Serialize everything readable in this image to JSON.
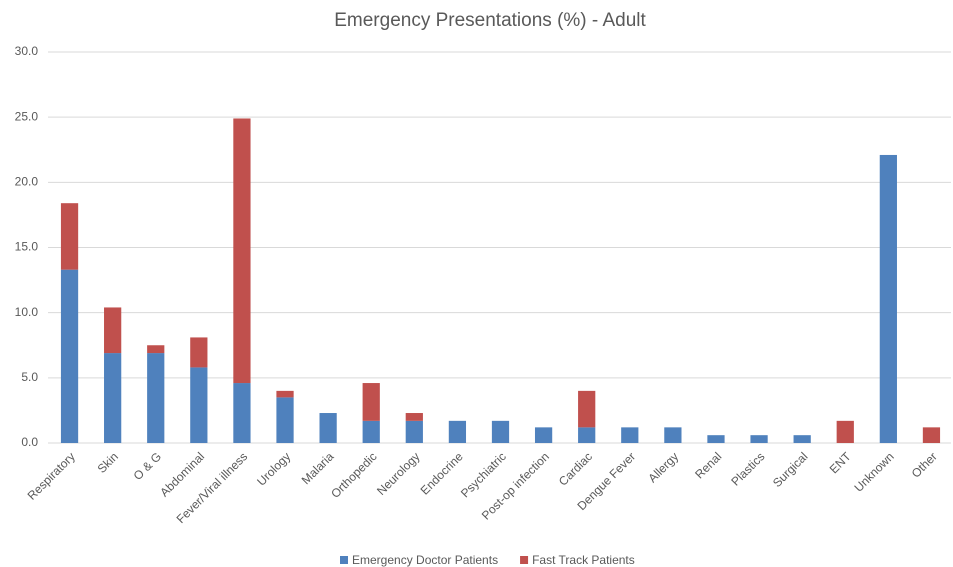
{
  "chart_data": {
    "type": "stacked_bar",
    "title": "Emergency Presentations (%) - Adult",
    "categories": [
      "Respiratory",
      "Skin",
      "O & G",
      "Abdominal",
      "Fever/Viral illness",
      "Urology",
      "Malaria",
      "Orthopedic",
      "Neurology",
      "Endocrine",
      "Psychiatric",
      "Post-op infection",
      "Cardiac",
      "Dengue Fever",
      "Allergy",
      "Renal",
      "Plastics",
      "Surgical",
      "ENT",
      "Unknown",
      "Other"
    ],
    "series": [
      {
        "name": "Emergency Doctor Patients",
        "color": "#4f81bd",
        "values": [
          13.3,
          6.9,
          6.9,
          5.8,
          4.6,
          3.5,
          2.3,
          1.7,
          1.7,
          1.7,
          1.7,
          1.2,
          1.2,
          1.2,
          1.2,
          0.6,
          0.6,
          0.6,
          0,
          22.1,
          0
        ]
      },
      {
        "name": "Fast Track Patients",
        "color": "#c0504d",
        "values": [
          5.1,
          3.5,
          0.6,
          2.3,
          20.3,
          0.5,
          0,
          2.9,
          0.6,
          0,
          0,
          0,
          2.8,
          0,
          0,
          0,
          0,
          0,
          1.7,
          0,
          1.2
        ]
      }
    ],
    "ylim": [
      0,
      30
    ],
    "yticks": [
      {
        "value": 0,
        "label": "0.0"
      },
      {
        "value": 5,
        "label": "5.0"
      },
      {
        "value": 10,
        "label": "10.0"
      },
      {
        "value": 15,
        "label": "15.0"
      },
      {
        "value": 20,
        "label": "20.0"
      },
      {
        "value": 25,
        "label": "25.0"
      },
      {
        "value": 30,
        "label": "30.0"
      }
    ],
    "grid": true,
    "legend": "bottom"
  }
}
